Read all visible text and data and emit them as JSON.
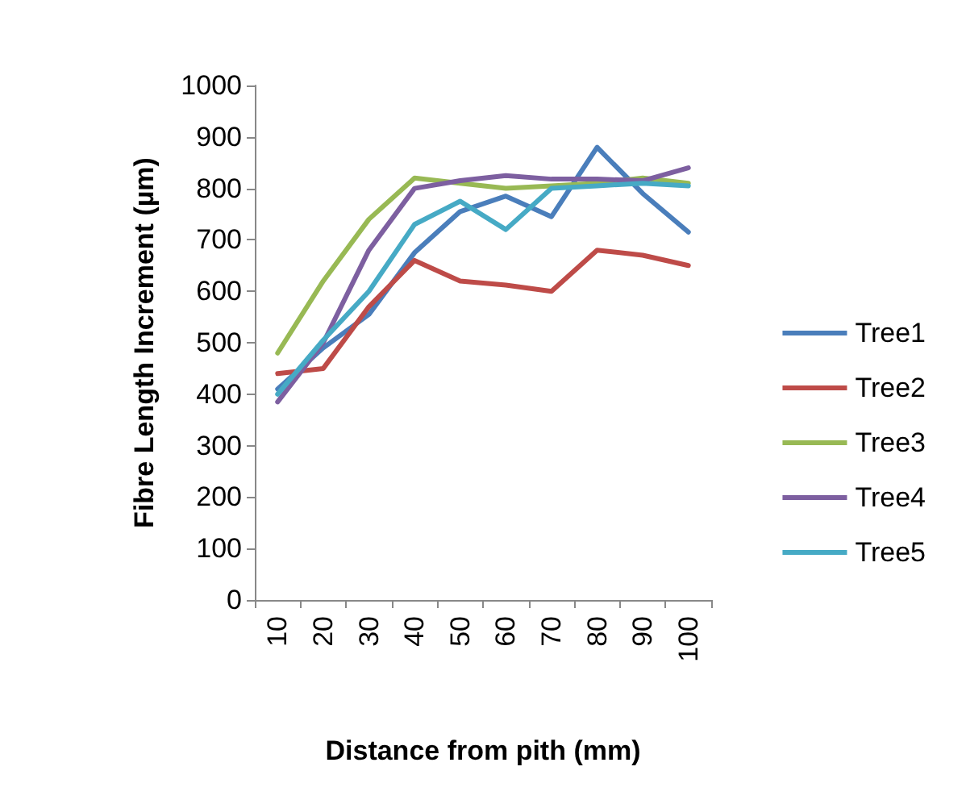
{
  "chart_data": {
    "type": "line",
    "xlabel": "Distance from pith (mm)",
    "ylabel": "Fibre Length Increment (µm)",
    "categories": [
      "10",
      "20",
      "30",
      "40",
      "50",
      "60",
      "70",
      "80",
      "90",
      "100"
    ],
    "series": [
      {
        "name": "Tree1",
        "color": "#4a7ebb",
        "values": [
          410,
          490,
          555,
          675,
          755,
          785,
          745,
          880,
          790,
          715
        ]
      },
      {
        "name": "Tree2",
        "color": "#be4b48",
        "values": [
          440,
          450,
          570,
          660,
          620,
          612,
          600,
          680,
          670,
          650
        ]
      },
      {
        "name": "Tree3",
        "color": "#98b954",
        "values": [
          480,
          620,
          740,
          820,
          810,
          800,
          805,
          810,
          820,
          810
        ]
      },
      {
        "name": "Tree4",
        "color": "#7d5fa0",
        "values": [
          385,
          500,
          680,
          800,
          815,
          825,
          818,
          818,
          815,
          840
        ]
      },
      {
        "name": "Tree5",
        "color": "#46aac5",
        "values": [
          400,
          505,
          600,
          730,
          775,
          720,
          800,
          805,
          810,
          805
        ]
      }
    ],
    "ylim": [
      0,
      1000
    ],
    "yticks": [
      0,
      100,
      200,
      300,
      400,
      500,
      600,
      700,
      800,
      900,
      1000
    ],
    "grid": false,
    "legend": "right",
    "marker": "none",
    "line_style": "solid"
  }
}
